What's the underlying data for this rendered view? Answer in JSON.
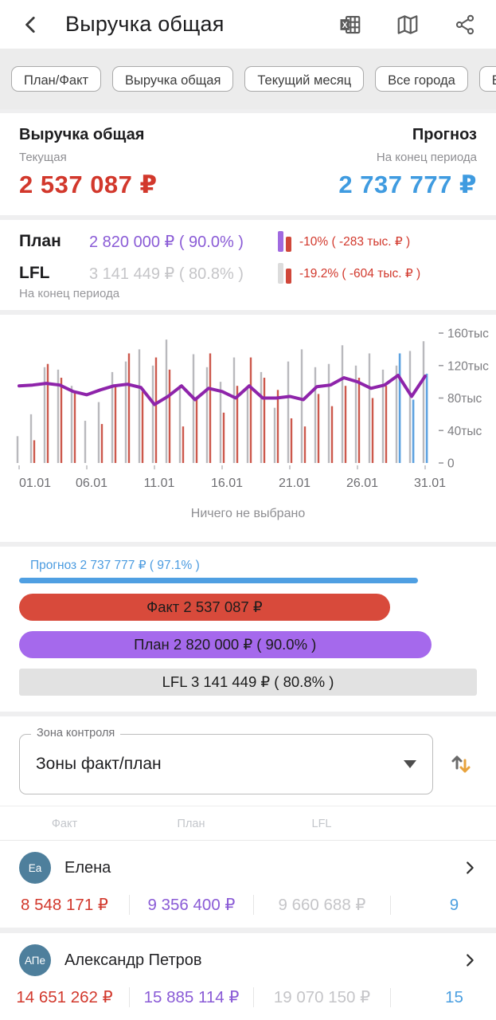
{
  "header": {
    "title": "Выручка общая"
  },
  "filters": [
    {
      "label": "План/Факт"
    },
    {
      "label": "Выручка общая"
    },
    {
      "label": "Текущий месяц"
    },
    {
      "label": "Все города"
    },
    {
      "label": "Все торговые"
    }
  ],
  "summary": {
    "left_title": "Выручка общая",
    "left_sub": "Текущая",
    "left_value": "2 537 087 ₽",
    "right_title": "Прогноз",
    "right_sub": "На конец периода",
    "right_value": "2 737 777 ₽"
  },
  "kpi": {
    "plan_label": "План",
    "plan_value": "2 820 000 ₽ ( 90.0% )",
    "plan_delta": "-10% ( -283 тыс. ₽ )",
    "lfl_label": "LFL",
    "lfl_value": "3 141 449 ₽ ( 80.8% )",
    "lfl_delta": "-19.2% ( -604 тыс. ₽ )",
    "footnote": "На конец периода"
  },
  "chart_data": {
    "type": "bar",
    "title": "",
    "xlabel": "",
    "ylabel": "тыс ₽",
    "ylim": [
      0,
      160
    ],
    "yticks": [
      0,
      40,
      80,
      120,
      160
    ],
    "ytick_unit": "тыс",
    "x_tick_days": [
      1,
      6,
      11,
      16,
      21,
      26,
      31
    ],
    "x_tick_labels": [
      "01.01",
      "06.01",
      "11.01",
      "16.01",
      "21.01",
      "26.01",
      "31.01"
    ],
    "categories": [
      "01.01",
      "02.01",
      "03.01",
      "04.01",
      "05.01",
      "06.01",
      "07.01",
      "08.01",
      "09.01",
      "10.01",
      "11.01",
      "12.01",
      "13.01",
      "14.01",
      "15.01",
      "16.01",
      "17.01",
      "18.01",
      "19.01",
      "20.01",
      "21.01",
      "22.01",
      "23.01",
      "24.01",
      "25.01",
      "26.01",
      "27.01",
      "28.01",
      "29.01",
      "30.01",
      "31.01"
    ],
    "series": [
      {
        "name": "LFL",
        "color": "#b9b9bd",
        "values": [
          33,
          60,
          118,
          115,
          95,
          52,
          75,
          112,
          125,
          140,
          120,
          152,
          96,
          134,
          118,
          100,
          130,
          95,
          112,
          68,
          125,
          140,
          118,
          122,
          145,
          120,
          135,
          115,
          120,
          138,
          150
        ]
      },
      {
        "name": "Факт",
        "color": "#cc584c",
        "values": [
          null,
          28,
          122,
          105,
          88,
          null,
          48,
          95,
          135,
          88,
          130,
          115,
          45,
          78,
          135,
          62,
          95,
          130,
          105,
          90,
          55,
          45,
          85,
          70,
          95,
          105,
          80,
          95,
          null,
          null,
          null
        ]
      },
      {
        "name": "Прогноз",
        "color": "#5da2e0",
        "values": [
          null,
          null,
          null,
          null,
          null,
          null,
          null,
          null,
          null,
          null,
          null,
          null,
          null,
          null,
          null,
          null,
          null,
          null,
          null,
          null,
          null,
          null,
          null,
          null,
          null,
          null,
          null,
          null,
          135,
          78,
          110
        ]
      },
      {
        "name": "План",
        "type": "line",
        "color": "#8e24aa",
        "values": [
          95,
          96,
          98,
          96,
          88,
          84,
          90,
          95,
          97,
          93,
          72,
          82,
          95,
          78,
          92,
          88,
          80,
          95,
          80,
          80,
          82,
          78,
          94,
          96,
          105,
          100,
          92,
          96,
          108,
          82,
          107
        ]
      }
    ],
    "legend_position": "none",
    "grid": false,
    "caption": "Ничего не выбрано"
  },
  "bars": [
    {
      "label": "Прогноз 2 737 777 ₽ ( 97.1% )",
      "width_pct": 87.2
    },
    {
      "label": "Факт 2 537 087 ₽",
      "width_pct": 81
    },
    {
      "label": "План 2 820 000 ₽ ( 90.0% )",
      "width_pct": 90
    },
    {
      "label": "LFL 3 141 449 ₽ ( 80.8% )",
      "width_pct": 100
    }
  ],
  "control": {
    "label": "Зона контроля",
    "value": "Зоны факт/план"
  },
  "table": {
    "headers": [
      "Факт",
      "План",
      "LFL"
    ],
    "rows": [
      {
        "initials": "Еа",
        "name": "Елена",
        "fact": "8 548 171 ₽",
        "plan": "9 356 400 ₽",
        "lfl": "9 660 688 ₽",
        "forecast": "9"
      },
      {
        "initials": "АПе",
        "name": "Александр Петров",
        "fact": "14 651 262 ₽",
        "plan": "15 885 114 ₽",
        "lfl": "19 070 150 ₽",
        "forecast": "15"
      }
    ]
  },
  "colors": {
    "fact_red": "#d2382c",
    "forecast_blue": "#3f9be0",
    "plan_purple": "#8a5bd6",
    "lfl_gray": "#c5c5c8",
    "plan_line": "#8e24aa",
    "avatar": "#4e7f9c",
    "sort_orange": "#e8a33d"
  }
}
